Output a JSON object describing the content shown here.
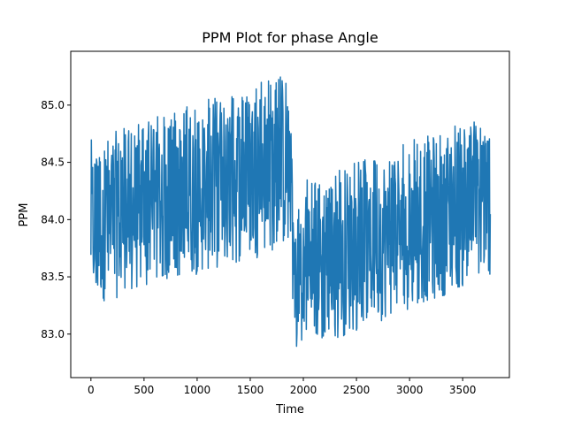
{
  "chart_data": {
    "type": "line",
    "title": "PPM Plot for phase Angle",
    "xlabel": "Time",
    "ylabel": "PPM",
    "xlim": [
      -190,
      3940
    ],
    "ylim": [
      82.62,
      85.47
    ],
    "xticks": [
      0,
      500,
      1000,
      1500,
      2000,
      2500,
      3000,
      3500
    ],
    "yticks": [
      83.0,
      83.5,
      84.0,
      84.5,
      85.0
    ],
    "ytick_labels": [
      "83.0",
      "83.5",
      "84.0",
      "84.5",
      "85.0"
    ],
    "grid": false,
    "legend": "none",
    "line_color": "#1f77b4",
    "series": [
      {
        "x_start": 0,
        "x_end": 3760,
        "n_points": 3761,
        "segments": [
          {
            "x_from": 0,
            "x_to": 1880,
            "low_from": 83.25,
            "low_to": 83.75,
            "high_from": 84.7,
            "high_to": 85.3
          },
          {
            "x_from": 1900,
            "x_to": 3760,
            "low_from": 82.8,
            "low_to": 83.5,
            "high_from": 84.3,
            "high_to": 84.95
          }
        ]
      }
    ]
  }
}
